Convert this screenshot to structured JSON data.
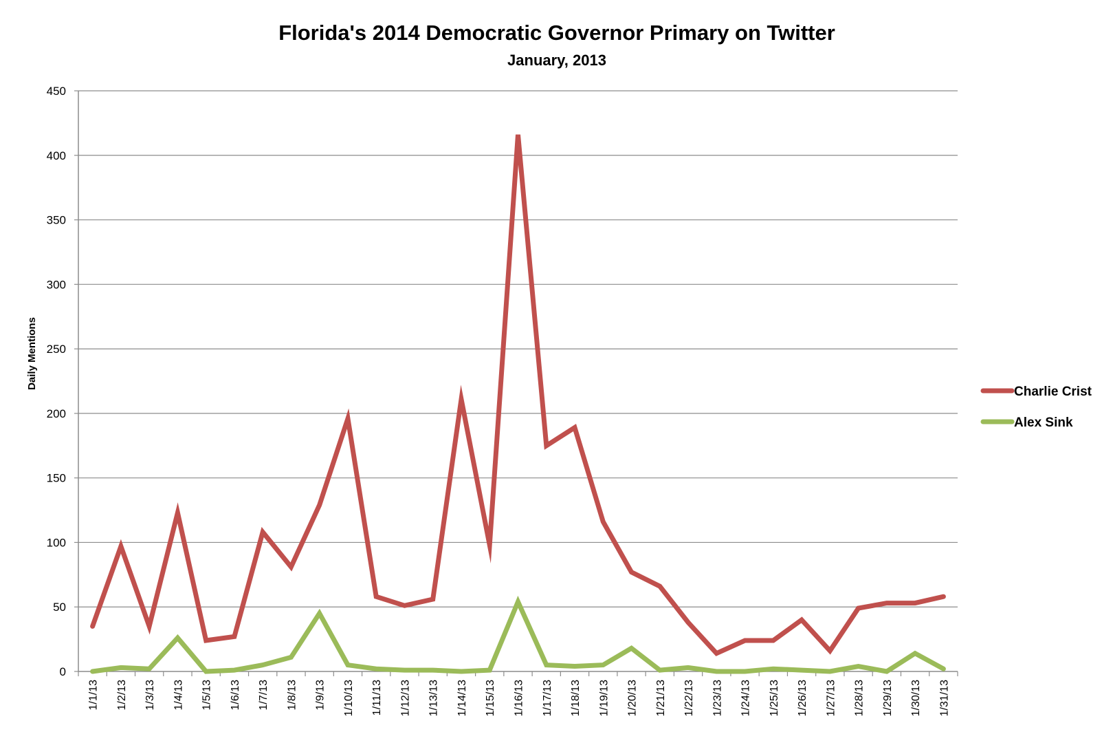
{
  "chart_data": {
    "type": "line",
    "title": "Florida's 2014 Democratic Governor Primary on Twitter",
    "subtitle": "January, 2013",
    "xlabel": "",
    "ylabel": "Daily Mentions",
    "ylim": [
      0,
      450
    ],
    "yticks": [
      0,
      50,
      100,
      150,
      200,
      250,
      300,
      350,
      400,
      450
    ],
    "grid": true,
    "legend_position": "right",
    "categories": [
      "1/1/13",
      "1/2/13",
      "1/3/13",
      "1/4/13",
      "1/5/13",
      "1/6/13",
      "1/7/13",
      "1/8/13",
      "1/9/13",
      "1/10/13",
      "1/11/13",
      "1/12/13",
      "1/13/13",
      "1/14/13",
      "1/15/13",
      "1/16/13",
      "1/17/13",
      "1/18/13",
      "1/19/13",
      "1/20/13",
      "1/21/13",
      "1/22/13",
      "1/23/13",
      "1/24/13",
      "1/25/13",
      "1/26/13",
      "1/27/13",
      "1/28/13",
      "1/29/13",
      "1/30/13",
      "1/31/13"
    ],
    "series": [
      {
        "name": "Charlie Crist",
        "color": "#c0504d",
        "values": [
          35,
          97,
          35,
          123,
          24,
          27,
          108,
          81,
          129,
          196,
          58,
          51,
          56,
          211,
          98,
          416,
          175,
          189,
          116,
          77,
          66,
          38,
          14,
          24,
          24,
          40,
          16,
          49,
          53,
          53,
          58
        ]
      },
      {
        "name": "Alex Sink",
        "color": "#9bbb59",
        "values": [
          0,
          3,
          2,
          26,
          0,
          1,
          5,
          11,
          45,
          5,
          2,
          1,
          1,
          0,
          1,
          54,
          5,
          4,
          5,
          18,
          1,
          3,
          0,
          0,
          2,
          1,
          0,
          4,
          0,
          14,
          2
        ]
      }
    ]
  }
}
